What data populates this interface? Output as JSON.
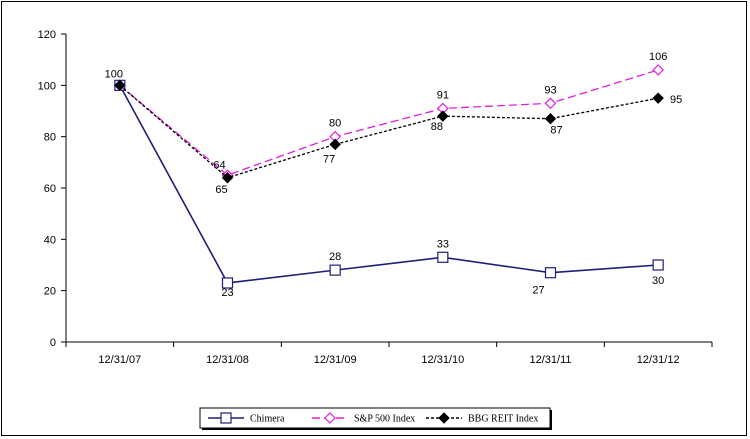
{
  "chart_data": {
    "type": "line",
    "categories": [
      "12/31/07",
      "12/31/08",
      "12/31/09",
      "12/31/10",
      "12/31/11",
      "12/31/12"
    ],
    "ylim": [
      0,
      120
    ],
    "yticks": [
      0,
      20,
      40,
      60,
      80,
      100,
      120
    ],
    "grid": false,
    "legend_position": "bottom",
    "series": [
      {
        "name": "Chimera",
        "values": [
          100,
          23,
          28,
          33,
          27,
          30
        ],
        "labels": [
          "",
          "23",
          "28",
          "33",
          "27",
          "30"
        ],
        "color": "#1f1f7a",
        "dash": "solid",
        "marker": "square"
      },
      {
        "name": "S&P 500 Index",
        "values": [
          100,
          65,
          80,
          91,
          93,
          106
        ],
        "labels": [
          "100",
          "65",
          "80",
          "91",
          "93",
          "106"
        ],
        "color": "#e020e0",
        "dash": "dashed",
        "marker": "diamond-open"
      },
      {
        "name": "BBG REIT Index",
        "values": [
          100,
          64,
          77,
          88,
          87,
          95
        ],
        "labels": [
          "",
          "64",
          "77",
          "88",
          "87",
          "95"
        ],
        "color": "#000000",
        "dash": "dotted",
        "marker": "diamond-filled"
      }
    ]
  }
}
